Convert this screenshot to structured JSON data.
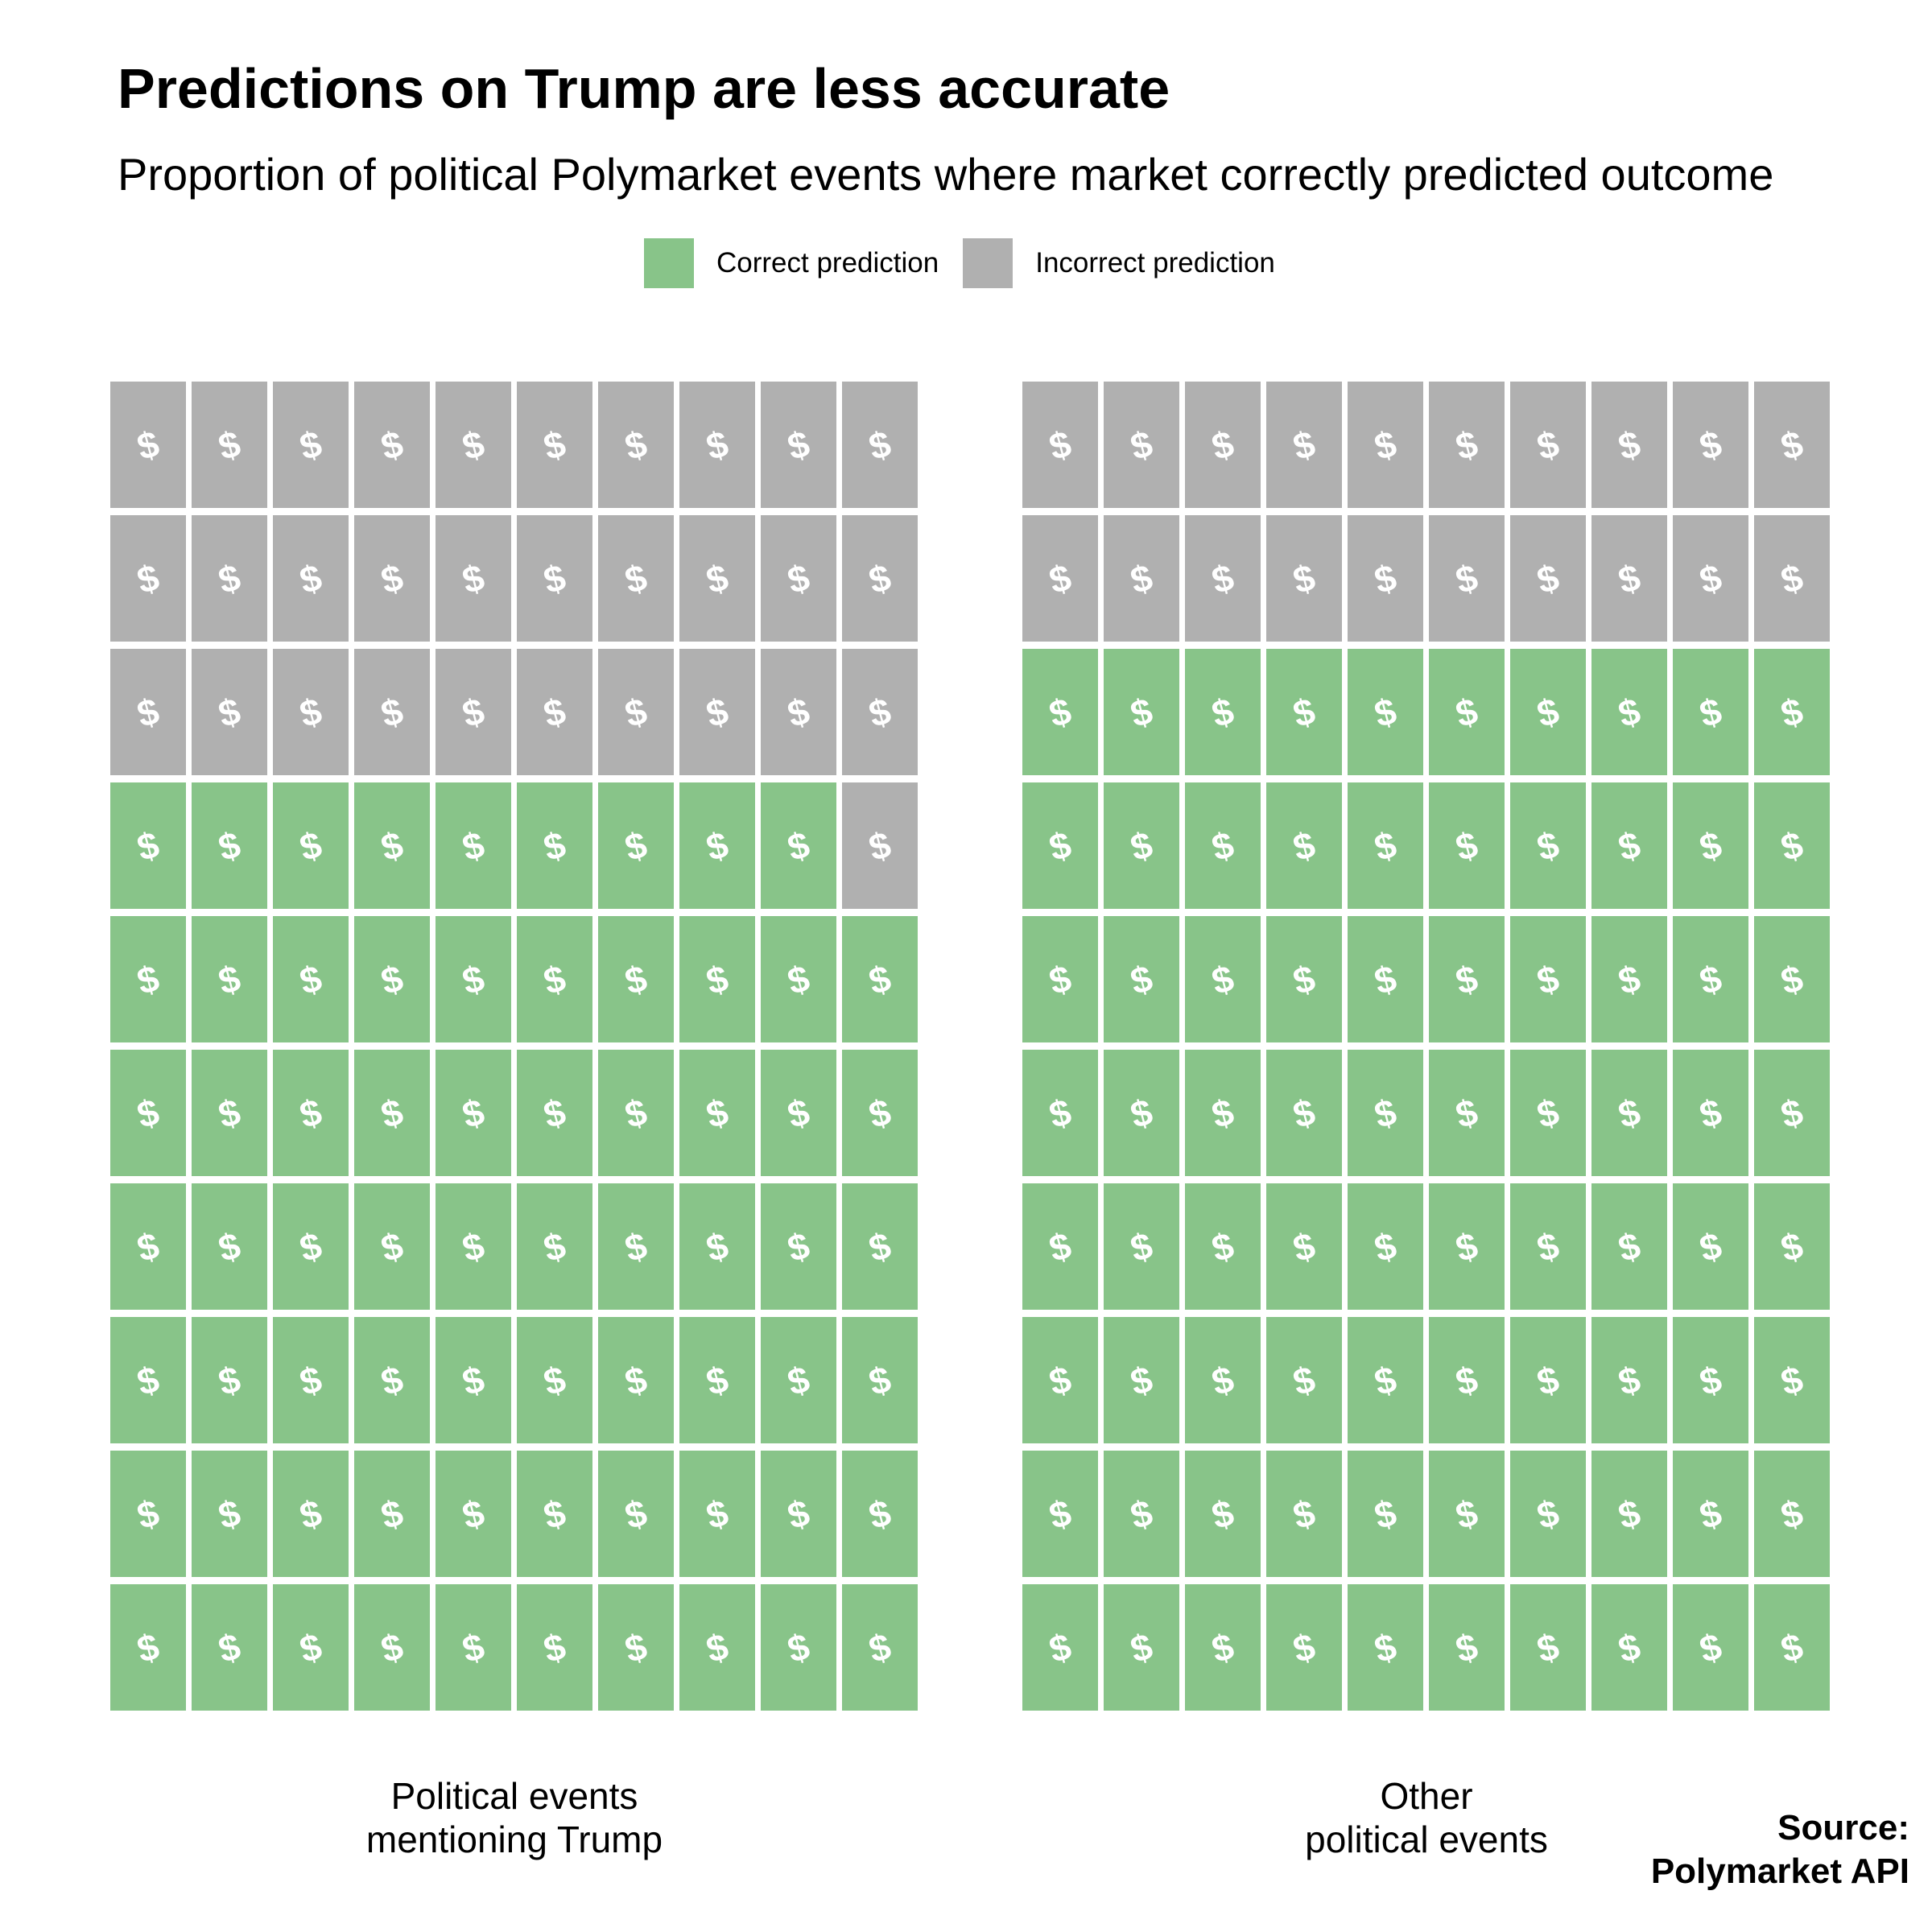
{
  "colors": {
    "correct": "#88c489",
    "incorrect": "#b0b0b0",
    "glyph": "#ffffff"
  },
  "icon": "dollar-sign-icon",
  "chart_data": {
    "type": "waffle",
    "title": "Predictions on Trump are less accurate",
    "subtitle": "Proportion of political Polymarket events where market correctly predicted outcome",
    "legend": {
      "placement": "top",
      "entries": [
        {
          "key": "correct",
          "label": "Correct prediction"
        },
        {
          "key": "incorrect",
          "label": "Incorrect prediction"
        }
      ]
    },
    "grid": {
      "rows": 10,
      "cols": 10
    },
    "panels": [
      {
        "label_lines": [
          "Political events",
          "mentioning Trump"
        ],
        "correct": 69,
        "incorrect": 31
      },
      {
        "label_lines": [
          "Other",
          "political events"
        ],
        "correct": 80,
        "incorrect": 20
      }
    ],
    "source_lines": [
      "Source:",
      "Polymarket API"
    ]
  }
}
